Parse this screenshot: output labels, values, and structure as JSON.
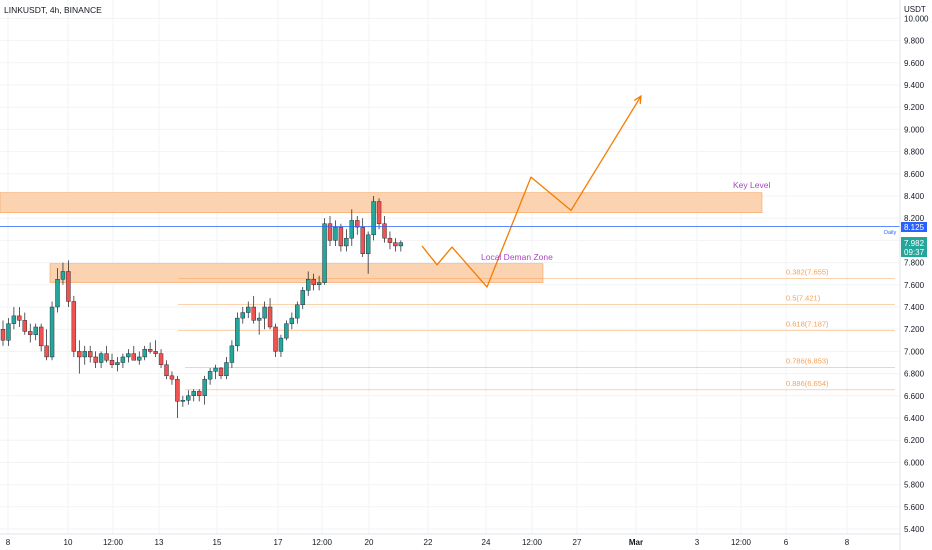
{
  "header": {
    "title": "LINKUSDT, 4h, BINANCE",
    "currency": "USDT"
  },
  "colors": {
    "up": "#26a69a",
    "down": "#ef5350",
    "wick": "#131722",
    "zone_fill": "#fbd3b1",
    "zone_border": "#f5a35c",
    "fib": "#f7a155",
    "projection": "#f57c00",
    "annotation": "#ab47bc",
    "current_line": "#2962ff",
    "badge_blue": "#2962ff",
    "badge_green": "#26a69a"
  },
  "price_axis": {
    "label": "USDT",
    "ticks": [
      "10.000",
      "9.800",
      "9.600",
      "9.400",
      "9.200",
      "9.000",
      "8.800",
      "8.600",
      "8.400",
      "8.200",
      "8.000",
      "7.800",
      "7.600",
      "7.400",
      "7.200",
      "7.000",
      "6.800",
      "6.600",
      "6.400",
      "6.200",
      "6.000",
      "5.800",
      "5.600",
      "5.400"
    ],
    "current_line_price": 8.125,
    "current_line_label": "8.125",
    "current_line_caption": "Daily",
    "last_price": "7.982",
    "countdown": "09:37"
  },
  "time_axis": {
    "ticks": [
      "8",
      "10",
      "12:00",
      "13",
      "15",
      "17",
      "12:00",
      "20",
      "22",
      "24",
      "12:00",
      "27",
      "Mar",
      "3",
      "12:00",
      "6",
      "8"
    ]
  },
  "annotations": {
    "key_level": "Key Level",
    "local_demand": "Local Deman Zone"
  },
  "fib_levels": [
    {
      "label": "0.382(7.655)",
      "price": 7.655
    },
    {
      "label": "0.5(7.421)",
      "price": 7.421
    },
    {
      "label": "0.618(7.187)",
      "price": 7.187
    },
    {
      "label": "0.786(6.853)",
      "price": 6.853
    },
    {
      "label": "0.886(6.654)",
      "price": 6.654
    }
  ],
  "zones": [
    {
      "name": "key-level-zone",
      "low": 8.25,
      "high": 8.43
    },
    {
      "name": "local-demand-zone",
      "low": 7.62,
      "high": 7.79
    }
  ],
  "projection_path": [
    {
      "date": "21",
      "price": 7.95
    },
    {
      "date": "22",
      "price": 7.78
    },
    {
      "date": "22.5",
      "price": 7.94
    },
    {
      "date": "24",
      "price": 7.58
    },
    {
      "date": "25",
      "price": 8.57
    },
    {
      "date": "26",
      "price": 8.27
    },
    {
      "date": "28",
      "price": 9.3
    }
  ],
  "chart_data": {
    "type": "candlestick",
    "title": "LINKUSDT, 4h, BINANCE",
    "ylabel": "USDT",
    "ylim": [
      5.4,
      10.0
    ],
    "x_ticks": [
      "8",
      "10",
      "12:00",
      "13",
      "15",
      "17",
      "12:00",
      "20",
      "22",
      "24",
      "12:00",
      "27",
      "Mar",
      "3",
      "12:00",
      "6",
      "8"
    ],
    "ohlc": [
      [
        7.2,
        7.28,
        7.05,
        7.1
      ],
      [
        7.1,
        7.3,
        7.05,
        7.25
      ],
      [
        7.25,
        7.4,
        7.2,
        7.32
      ],
      [
        7.32,
        7.4,
        7.22,
        7.28
      ],
      [
        7.28,
        7.35,
        7.15,
        7.18
      ],
      [
        7.18,
        7.25,
        7.08,
        7.15
      ],
      [
        7.15,
        7.25,
        7.1,
        7.22
      ],
      [
        7.22,
        7.25,
        7.0,
        7.05
      ],
      [
        7.05,
        7.2,
        6.92,
        6.95
      ],
      [
        6.95,
        7.45,
        6.92,
        7.4
      ],
      [
        7.4,
        7.75,
        7.35,
        7.65
      ],
      [
        7.65,
        7.8,
        7.6,
        7.72
      ],
      [
        7.72,
        7.82,
        7.4,
        7.45
      ],
      [
        7.45,
        7.5,
        6.95,
        7.0
      ],
      [
        7.0,
        7.1,
        6.8,
        6.95
      ],
      [
        6.95,
        7.05,
        6.88,
        7.0
      ],
      [
        7.0,
        7.05,
        6.9,
        6.95
      ],
      [
        6.95,
        7.0,
        6.85,
        6.9
      ],
      [
        6.9,
        7.0,
        6.85,
        6.98
      ],
      [
        6.98,
        7.05,
        6.9,
        6.92
      ],
      [
        6.92,
        6.98,
        6.85,
        6.88
      ],
      [
        6.88,
        6.95,
        6.82,
        6.9
      ],
      [
        6.9,
        6.98,
        6.85,
        6.95
      ],
      [
        6.95,
        7.02,
        6.9,
        6.98
      ],
      [
        6.98,
        7.05,
        6.95,
        6.92
      ],
      [
        6.92,
        7.0,
        6.88,
        6.95
      ],
      [
        6.95,
        7.05,
        6.92,
        7.02
      ],
      [
        7.02,
        7.08,
        6.98,
        7.0
      ],
      [
        7.0,
        7.1,
        6.95,
        6.98
      ],
      [
        6.98,
        7.02,
        6.85,
        6.88
      ],
      [
        6.88,
        6.92,
        6.75,
        6.78
      ],
      [
        6.78,
        6.82,
        6.7,
        6.75
      ],
      [
        6.75,
        6.78,
        6.4,
        6.55
      ],
      [
        6.55,
        6.6,
        6.5,
        6.56
      ],
      [
        6.56,
        6.65,
        6.52,
        6.6
      ],
      [
        6.6,
        6.66,
        6.55,
        6.64
      ],
      [
        6.64,
        6.66,
        6.55,
        6.6
      ],
      [
        6.6,
        6.78,
        6.52,
        6.75
      ],
      [
        6.75,
        6.85,
        6.7,
        6.82
      ],
      [
        6.82,
        6.88,
        6.75,
        6.85
      ],
      [
        6.85,
        6.86,
        6.75,
        6.78
      ],
      [
        6.78,
        6.95,
        6.75,
        6.9
      ],
      [
        6.9,
        7.1,
        6.85,
        7.05
      ],
      [
        7.05,
        7.35,
        7.0,
        7.3
      ],
      [
        7.3,
        7.4,
        7.25,
        7.35
      ],
      [
        7.35,
        7.45,
        7.3,
        7.4
      ],
      [
        7.4,
        7.5,
        7.25,
        7.28
      ],
      [
        7.28,
        7.35,
        7.15,
        7.3
      ],
      [
        7.3,
        7.45,
        7.2,
        7.4
      ],
      [
        7.4,
        7.48,
        7.2,
        7.22
      ],
      [
        7.22,
        7.25,
        6.95,
        7.0
      ],
      [
        7.0,
        7.15,
        6.95,
        7.12
      ],
      [
        7.12,
        7.28,
        7.1,
        7.25
      ],
      [
        7.25,
        7.35,
        7.2,
        7.3
      ],
      [
        7.3,
        7.45,
        7.25,
        7.42
      ],
      [
        7.42,
        7.58,
        7.38,
        7.55
      ],
      [
        7.55,
        7.72,
        7.5,
        7.65
      ],
      [
        7.65,
        7.7,
        7.55,
        7.6
      ],
      [
        7.6,
        7.68,
        7.55,
        7.62
      ],
      [
        7.62,
        8.2,
        7.6,
        8.15
      ],
      [
        8.15,
        8.22,
        7.95,
        8.0
      ],
      [
        8.0,
        8.18,
        7.95,
        8.12
      ],
      [
        8.12,
        8.15,
        7.9,
        7.95
      ],
      [
        7.95,
        8.1,
        7.9,
        8.02
      ],
      [
        8.02,
        8.28,
        7.95,
        8.18
      ],
      [
        8.18,
        8.22,
        8.05,
        8.12
      ],
      [
        8.12,
        8.2,
        7.85,
        7.88
      ],
      [
        7.88,
        8.08,
        7.7,
        8.05
      ],
      [
        8.05,
        8.4,
        8.0,
        8.35
      ],
      [
        8.35,
        8.38,
        8.1,
        8.15
      ],
      [
        8.15,
        8.22,
        7.98,
        8.02
      ],
      [
        8.02,
        8.08,
        7.92,
        7.98
      ],
      [
        7.98,
        8.02,
        7.9,
        7.95
      ],
      [
        7.95,
        8.0,
        7.9,
        7.98
      ]
    ]
  }
}
